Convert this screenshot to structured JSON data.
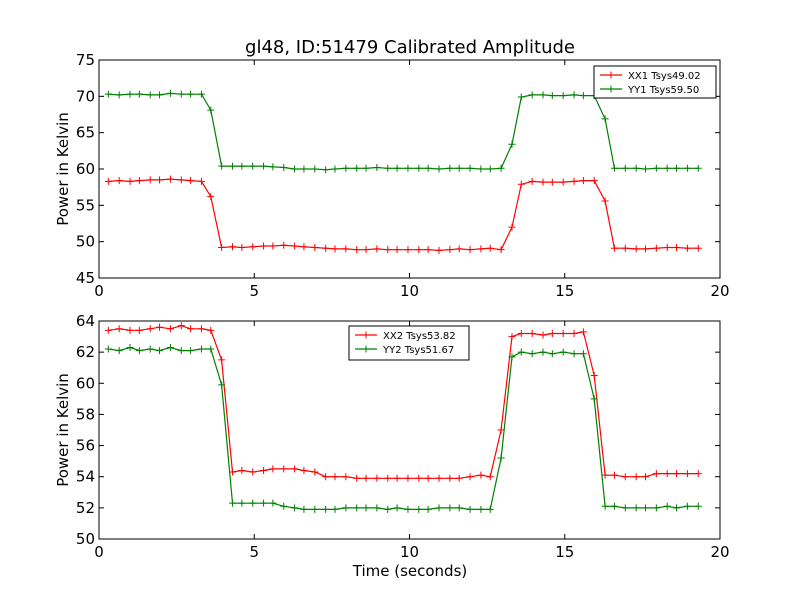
{
  "chart_data": [
    {
      "type": "line",
      "title": "gl48, ID:51479 Calibrated Amplitude",
      "xlabel": "",
      "ylabel": "Power in Kelvin",
      "xlim": [
        0,
        20
      ],
      "ylim": [
        45,
        75
      ],
      "xticks": [
        "0",
        "5",
        "10",
        "15",
        "20"
      ],
      "yticks": [
        "45",
        "50",
        "55",
        "60",
        "65",
        "70",
        "75"
      ],
      "grid": false,
      "legend": "top-right",
      "x": [
        0.3,
        0.65,
        1.0,
        1.3,
        1.65,
        1.95,
        2.3,
        2.65,
        2.95,
        3.3,
        3.6,
        3.95,
        4.3,
        4.6,
        4.95,
        5.3,
        5.6,
        5.95,
        6.3,
        6.6,
        6.95,
        7.3,
        7.6,
        7.95,
        8.3,
        8.6,
        8.95,
        9.3,
        9.6,
        9.95,
        10.3,
        10.6,
        10.95,
        11.3,
        11.6,
        11.95,
        12.3,
        12.6,
        12.95,
        13.3,
        13.6,
        13.95,
        14.3,
        14.6,
        14.95,
        15.3,
        15.6,
        15.95,
        16.3,
        16.6,
        16.95,
        17.3,
        17.6,
        17.95,
        18.3,
        18.6,
        18.95,
        19.3
      ],
      "series": [
        {
          "name": "XX1 Tsys49.02",
          "color": "#ff0000",
          "values": [
            58.3,
            58.4,
            58.3,
            58.4,
            58.5,
            58.5,
            58.6,
            58.5,
            58.4,
            58.3,
            56.2,
            49.2,
            49.3,
            49.2,
            49.3,
            49.4,
            49.4,
            49.5,
            49.4,
            49.3,
            49.2,
            49.1,
            49.0,
            49.0,
            48.9,
            48.9,
            49.0,
            48.9,
            48.9,
            48.9,
            48.9,
            48.9,
            48.8,
            48.9,
            49.0,
            48.9,
            49.0,
            49.1,
            48.9,
            52.0,
            57.9,
            58.3,
            58.2,
            58.2,
            58.2,
            58.3,
            58.4,
            58.4,
            55.6,
            49.1,
            49.1,
            49.0,
            49.0,
            49.1,
            49.2,
            49.2,
            49.1,
            49.1
          ]
        },
        {
          "name": "YY1 Tsys59.50",
          "color": "#008000",
          "values": [
            70.3,
            70.2,
            70.3,
            70.3,
            70.2,
            70.2,
            70.4,
            70.3,
            70.3,
            70.3,
            68.1,
            60.4,
            60.4,
            60.4,
            60.4,
            60.4,
            60.3,
            60.2,
            60.0,
            60.0,
            60.0,
            59.9,
            60.0,
            60.1,
            60.1,
            60.1,
            60.2,
            60.1,
            60.1,
            60.1,
            60.1,
            60.1,
            60.0,
            60.1,
            60.1,
            60.1,
            60.0,
            60.0,
            60.1,
            63.4,
            69.9,
            70.2,
            70.2,
            70.1,
            70.1,
            70.2,
            70.1,
            70.1,
            66.9,
            60.1,
            60.1,
            60.1,
            60.0,
            60.1,
            60.1,
            60.1,
            60.1,
            60.1
          ]
        }
      ]
    },
    {
      "type": "line",
      "title": "",
      "xlabel": "Time (seconds)",
      "ylabel": "Power in Kelvin",
      "xlim": [
        0,
        20
      ],
      "ylim": [
        50,
        64
      ],
      "xticks": [
        "0",
        "5",
        "10",
        "15",
        "20"
      ],
      "yticks": [
        "50",
        "52",
        "54",
        "56",
        "58",
        "60",
        "62",
        "64"
      ],
      "grid": false,
      "legend": "top-center",
      "x": [
        0.3,
        0.65,
        1.0,
        1.3,
        1.65,
        1.95,
        2.3,
        2.65,
        2.95,
        3.3,
        3.6,
        3.95,
        4.3,
        4.6,
        4.95,
        5.3,
        5.6,
        5.95,
        6.3,
        6.6,
        6.95,
        7.3,
        7.6,
        7.95,
        8.3,
        8.6,
        8.95,
        9.3,
        9.6,
        9.95,
        10.3,
        10.6,
        10.95,
        11.3,
        11.6,
        11.95,
        12.3,
        12.6,
        12.95,
        13.3,
        13.6,
        13.95,
        14.3,
        14.6,
        14.95,
        15.3,
        15.6,
        15.95,
        16.3,
        16.6,
        16.95,
        17.3,
        17.6,
        17.95,
        18.3,
        18.6,
        18.95,
        19.3
      ],
      "series": [
        {
          "name": "XX2 Tsys53.82",
          "color": "#ff0000",
          "values": [
            63.4,
            63.5,
            63.4,
            63.4,
            63.5,
            63.6,
            63.5,
            63.7,
            63.5,
            63.5,
            63.4,
            61.5,
            54.3,
            54.4,
            54.3,
            54.4,
            54.5,
            54.5,
            54.5,
            54.4,
            54.3,
            54.0,
            54.0,
            54.0,
            53.9,
            53.9,
            53.9,
            53.9,
            53.9,
            53.9,
            53.9,
            53.9,
            53.9,
            53.9,
            53.9,
            54.0,
            54.1,
            54.0,
            57.0,
            63.0,
            63.2,
            63.2,
            63.1,
            63.2,
            63.2,
            63.2,
            63.3,
            60.5,
            54.1,
            54.1,
            54.0,
            54.0,
            54.0,
            54.2,
            54.2,
            54.2,
            54.2,
            54.2
          ]
        },
        {
          "name": "YY2 Tsys51.67",
          "color": "#008000",
          "values": [
            62.2,
            62.1,
            62.3,
            62.1,
            62.2,
            62.1,
            62.3,
            62.1,
            62.1,
            62.2,
            62.2,
            59.9,
            52.3,
            52.3,
            52.3,
            52.3,
            52.3,
            52.1,
            52.0,
            51.9,
            51.9,
            51.9,
            51.9,
            52.0,
            52.0,
            52.0,
            52.0,
            51.9,
            52.0,
            51.9,
            51.9,
            51.9,
            52.0,
            52.0,
            52.0,
            51.9,
            51.9,
            51.9,
            55.2,
            61.7,
            62.0,
            61.9,
            62.0,
            61.9,
            62.0,
            61.9,
            61.9,
            59.0,
            52.1,
            52.1,
            52.0,
            52.0,
            52.0,
            52.0,
            52.1,
            52.0,
            52.1,
            52.1
          ]
        }
      ]
    }
  ]
}
